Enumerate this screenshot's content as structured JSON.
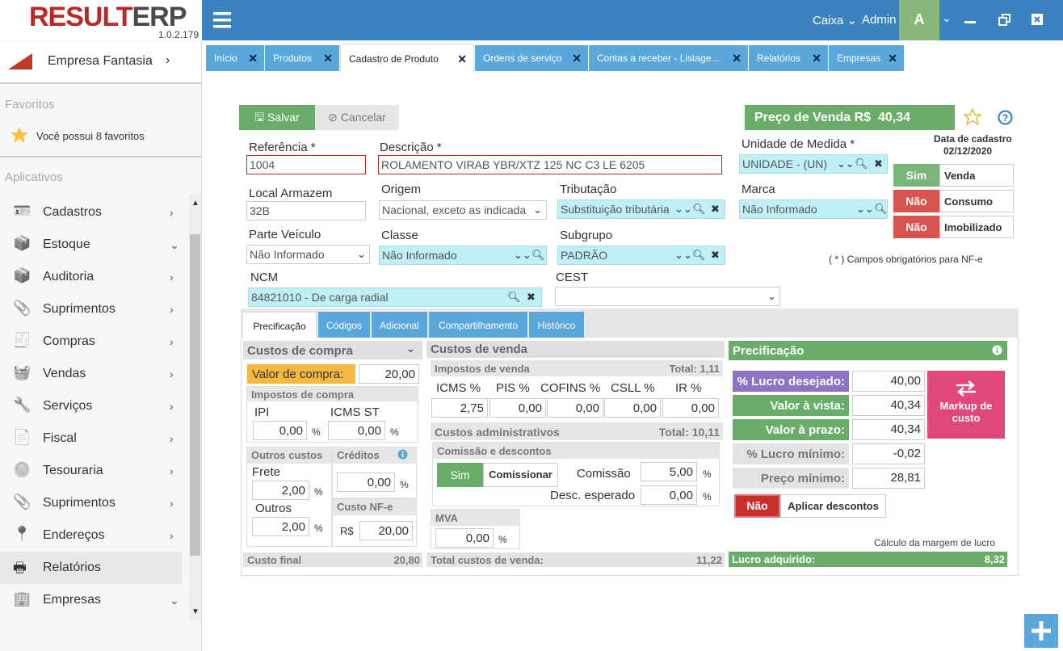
{
  "app": {
    "logo_red": "RESULT",
    "logo_dark": "ERP",
    "version": "1.0.2.179",
    "cashier": "Caixa",
    "user": "Admin",
    "avatar": "A"
  },
  "sidebar": {
    "company": "Empresa Fantasia",
    "favorites_header": "Favoritos",
    "favorites_text": "Você possui 8 favoritos",
    "apps_header": "Aplicativos",
    "items": [
      {
        "label": "Cadastros",
        "arrow": "›"
      },
      {
        "label": "Estoque",
        "arrow": "⌄"
      },
      {
        "label": "Auditoria",
        "arrow": "›"
      },
      {
        "label": "Suprimentos",
        "arrow": "›"
      },
      {
        "label": "Compras",
        "arrow": "›"
      },
      {
        "label": "Vendas",
        "arrow": "›"
      },
      {
        "label": "Serviços",
        "arrow": "›"
      },
      {
        "label": "Fiscal",
        "arrow": "›"
      },
      {
        "label": "Tesouraria",
        "arrow": "›"
      },
      {
        "label": "Suprimentos",
        "arrow": "›"
      },
      {
        "label": "Endereços",
        "arrow": "›"
      },
      {
        "label": "Relatórios",
        "arrow": ""
      },
      {
        "label": "Empresas",
        "arrow": "⌄"
      }
    ]
  },
  "tabs": [
    "Início",
    "Produtos",
    "Cadastro de Produto",
    "Ordens de serviço",
    "Contas a receber - Listage...",
    "Relatórios",
    "Empresas"
  ],
  "toolbar": {
    "save": "Salvar",
    "cancel": "Cancelar",
    "price_label": "Preço de Venda R$",
    "price_value": "40,34"
  },
  "form": {
    "ref_label": "Referência *",
    "ref_value": "1004",
    "desc_label": "Descrição *",
    "desc_value": "ROLAMENTO VIRAB YBR/XTZ 125 NC C3 LE 6205",
    "unit_label": "Unidade de Medida *",
    "unit_value": "UNIDADE - (UN)",
    "reg_date_label": "Data de cadastro",
    "reg_date": "02/12/2020",
    "local_label": "Local Armazem",
    "local_value": "32B",
    "origem_label": "Origem",
    "origem_value": "Nacional, exceto as indicada",
    "trib_label": "Tributação",
    "trib_value": "Substituição tributária",
    "marca_label": "Marca",
    "marca_value": "Não Informado",
    "parte_label": "Parte Veículo",
    "parte_value": "Não Informado",
    "classe_label": "Classe",
    "classe_value": "Não Informado",
    "subgrupo_label": "Subgrupo",
    "subgrupo_value": "PADRÃO",
    "ncm_label": "NCM",
    "ncm_value": "84821010 - De carga radial",
    "cest_label": "CEST",
    "cest_value": "",
    "required_note": "( * ) Campos obrigatórios para NF-e",
    "flags": [
      {
        "state": "Sim",
        "label": "Venda",
        "color": "#7ab57a"
      },
      {
        "state": "Não",
        "label": "Consumo",
        "color": "#d9534f"
      },
      {
        "state": "Não",
        "label": "Imobilizado",
        "color": "#d9534f"
      }
    ]
  },
  "subtabs": [
    "Precificação",
    "Códigos",
    "Adicional",
    "Compartilhamento",
    "Histórico"
  ],
  "custos_compra": {
    "title": "Custos de compra",
    "valor_label": "Valor de compra:",
    "valor": "20,00",
    "impostos_title": "Impostos de compra",
    "ipi_label": "IPI",
    "ipi": "0,00",
    "icmsst_label": "ICMS ST",
    "icmsst": "0,00",
    "pct": "%",
    "outros_title": "Outros custos",
    "frete_label": "Frete",
    "frete": "2,00",
    "outros_label": "Outros",
    "outros": "2,00",
    "creditos_title": "Créditos",
    "creditos": "0,00",
    "nfe_title": "Custo NF-e",
    "nfe_cur": "R$",
    "nfe": "20,00",
    "final_label": "Custo final",
    "final": "20,80"
  },
  "custos_venda": {
    "title": "Custos de venda",
    "impostos_title": "Impostos de venda",
    "impostos_total": "Total: 1,11",
    "cols": [
      "ICMS %",
      "PIS %",
      "COFINS %",
      "CSLL %",
      "IR %"
    ],
    "vals": [
      "2,75",
      "0,00",
      "0,00",
      "0,00",
      "0,00"
    ],
    "admin_title": "Custos administrativos",
    "admin_total": "Total: 10,11",
    "comissao_title": "Comissão e descontos",
    "sim": "Sim",
    "comissionar": "Comissionar",
    "comissao_label": "Comissão",
    "comissao": "5,00",
    "desc_label": "Desc. esperado",
    "desc": "0,00",
    "mva_title": "MVA",
    "mva": "0,00",
    "total_label": "Total custos de venda:",
    "total": "11,22"
  },
  "precificacao": {
    "title": "Precificação",
    "lucro_desejado_label": "% Lucro desejado:",
    "lucro_desejado": "40,00",
    "vista_label": "Valor à vista:",
    "vista": "40,34",
    "prazo_label": "Valor à prazo:",
    "prazo": "40,34",
    "lucro_min_label": "% Lucro mínimo:",
    "lucro_min": "-0,02",
    "preco_min_label": "Preço mínimo:",
    "preco_min": "28,81",
    "markup": "Markup de custo",
    "nao": "Não",
    "aplicar": "Aplicar descontos",
    "calc_note": "Cálculo da margem de lucro",
    "lucro_adq_label": "Lucro adquirido:",
    "lucro_adq": "8,32"
  },
  "colors": {
    "topbar": "#3b83c0",
    "tab": "#5aa7dc",
    "green": "#6aad6a",
    "red": "#d9534f",
    "purple": "#8d73c1",
    "pink": "#e0477c",
    "cyan": "#c0f0f6",
    "orange": "#f5b942"
  }
}
